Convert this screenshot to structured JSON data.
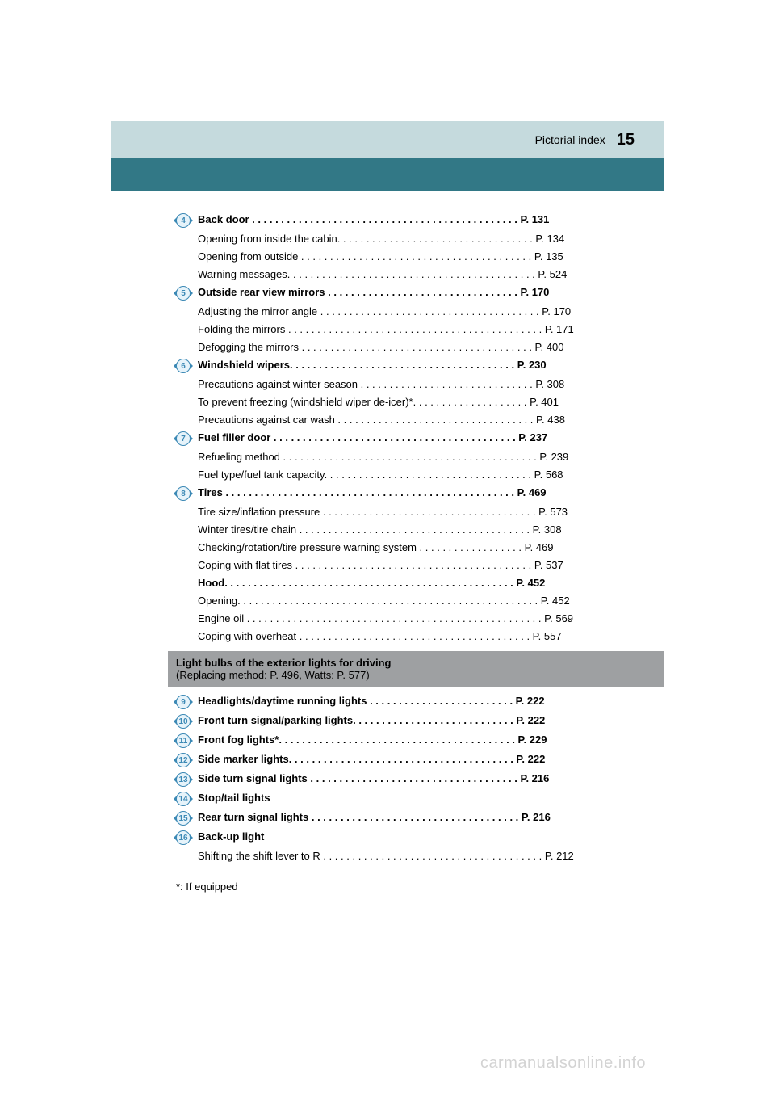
{
  "header": {
    "label": "Pictorial index",
    "page_number": "15"
  },
  "colors": {
    "header_bg": "#c5dadd",
    "teal_bg": "#327886",
    "bubble_border": "#3c89b5",
    "bubble_bg": "#e6f3fa",
    "gray_section": "#9ea0a2",
    "text": "#000000",
    "watermark": "#d3d3d3"
  },
  "items": {
    "n4": "4",
    "n5": "5",
    "n6": "6",
    "n7": "7",
    "n8": "8",
    "n9": "9",
    "n10": "10",
    "n11": "11",
    "n12": "12",
    "n13": "13",
    "n14": "14",
    "n15": "15",
    "n16": "16"
  },
  "lines": {
    "l4_main": "Back door . . . . . . . . . . . . . . . . . . . . . . . . . . . . . . . . . . . . . . . . . . . . . . P. 131",
    "l4_s1": "Opening from inside the cabin. . . . . . . . . . . . . . . . . . . . . . . . . . . . . . . . . . P. 134",
    "l4_s2": "Opening from outside . . . . . . . . . . . . . . . . . . . . . . . . . . . . . . . . . . . . . . . . P. 135",
    "l4_s3": "Warning messages. . . . . . . . . . . . . . . . . . . . . . . . . . . . . . . . . . . . . . . . . . . P. 524",
    "l5_main": "Outside rear view mirrors . . . . . . . . . . . . . . . . . . . . . . . . . . . . . . . . . P. 170",
    "l5_s1": "Adjusting the mirror angle . . . . . . . . . . . . . . . . . . . . . . . . . . . . . . . . . . . . . . P. 170",
    "l5_s2": "Folding the mirrors . . . . . . . . . . . . . . . . . . . . . . . . . . . . . . . . . . . . . . . . . . . . P. 171",
    "l5_s3": "Defogging the mirrors . . . . . . . . . . . . . . . . . . . . . . . . . . . . . . . . . . . . . . . . P. 400",
    "l6_main": "Windshield wipers. . . . . . . . . . . . . . . . . . . . . . . . . . . . . . . . . . . . . . . P. 230",
    "l6_s1": "Precautions against winter season . . . . . . . . . . . . . . . . . . . . . . . . . . . . . . P. 308",
    "l6_s2": "To prevent freezing (windshield wiper de-icer)*. . . . . . . . . . . . . . . . . . . . P. 401",
    "l6_s3": "Precautions against car wash . . . . . . . . . . . . . . . . . . . . . . . . . . . . . . . . . . P. 438",
    "l7_main": "Fuel filler door . . . . . . . . . . . . . . . . . . . . . . . . . . . . . . . . . . . . . . . . . . P. 237",
    "l7_s1": "Refueling method . . . . . . . . . . . . . . . . . . . . . . . . . . . . . . . . . . . . . . . . . . . . P. 239",
    "l7_s2": "Fuel type/fuel tank capacity. . . . . . . . . . . . . . . . . . . . . . . . . . . . . . . . . . . . P. 568",
    "l8_main": "Tires . . . . . . . . . . . . . . . . . . . . . . . . . . . . . . . . . . . . . . . . . . . . . . . . . . P. 469",
    "l8_s1": "Tire size/inflation pressure . . . . . . . . . . . . . . . . . . . . . . . . . . . . . . . . . . . . . P. 573",
    "l8_s2": "Winter tires/tire chain . . . . . . . . . . . . . . . . . . . . . . . . . . . . . . . . . . . . . . . . P. 308",
    "l8_s3": "Checking/rotation/tire pressure warning system . . . . . . . . . . . . . . . . . . P. 469",
    "l8_s4": "Coping with flat tires . . . . . . . . . . . . . . . . . . . . . . . . . . . . . . . . . . . . . . . . . P. 537",
    "l8_s5": "Hood. . . . . . . . . . . . . . . . . . . . . . . . . . . . . . . . . . . . . . . . . . . . . . . . . . P. 452",
    "l8_s6": "Opening. . . . . . . . . . . . . . . . . . . . . . . . . . . . . . . . . . . . . . . . . . . . . . . . . . . . P. 452",
    "l8_s7": "Engine oil . . . . . . . . . . . . . . . . . . . . . . . . . . . . . . . . . . . . . . . . . . . . . . . . . . . P. 569",
    "l8_s8": "Coping with overheat . . . . . . . . . . . . . . . . . . . . . . . . . . . . . . . . . . . . . . . . P. 557",
    "section_title": "Light bulbs of the exterior lights for driving",
    "section_sub": "(Replacing method: P. 496, Watts: P. 577)",
    "l9": "Headlights/daytime running lights . . . . . . . . . . . . . . . . . . . . . . . . . P. 222",
    "l10": "Front turn signal/parking lights. . . . . . . . . . . . . . . . . . . . . . . . . . . . P. 222",
    "l11": "Front fog lights*. . . . . . . . . . . . . . . . . . . . . . . . . . . . . . . . . . . . . . . . . P. 229",
    "l12": "Side marker lights. . . . . . . . . . . . . . . . . . . . . . . . . . . . . . . . . . . . . . . P. 222",
    "l13": "Side turn signal lights . . . . . . . . . . . . . . . . . . . . . . . . . . . . . . . . . . . . P. 216",
    "l14": "Stop/tail lights",
    "l15": "Rear turn signal lights . . . . . . . . . . . . . . . . . . . . . . . . . . . . . . . . . . . . P. 216",
    "l16": "Back-up light",
    "l16_s1": "Shifting the shift lever to R . . . . . . . . . . . . . . . . . . . . . . . . . . . . . . . . . . . . . . P. 212",
    "footnote": "*: If equipped"
  },
  "watermark": "carmanualsonline.info"
}
